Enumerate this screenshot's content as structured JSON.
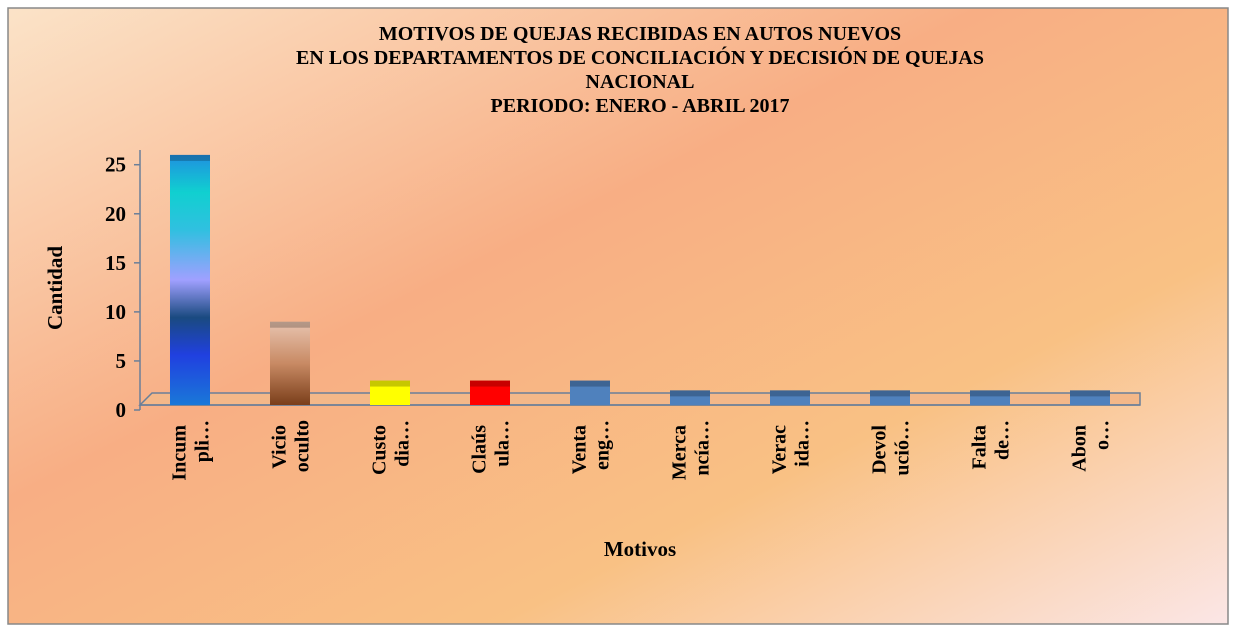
{
  "chart_data": {
    "type": "bar",
    "title": [
      "MOTIVOS DE QUEJAS RECIBIDAS EN AUTOS NUEVOS",
      "EN LOS DEPARTAMENTOS DE CONCILIACIÓN Y DECISIÓN DE QUEJAS",
      "NACIONAL",
      "PERIODO: ENERO - ABRIL 2017"
    ],
    "x_label": "Motivos",
    "y_label": "Cantidad",
    "categories": [
      "Incum pli…",
      "Vicio oculto",
      "Custo dia…",
      "Claús ula…",
      "Venta eng…",
      "Merca ncía…",
      "Verac ida…",
      "Devol ució…",
      "Falta de…",
      "Abon o…"
    ],
    "values": [
      26,
      9,
      3,
      3,
      3,
      2,
      2,
      2,
      2,
      2
    ],
    "colors": [
      "#2a8ad6",
      "#a8673f",
      "#ffff00",
      "#ff0000",
      "#4f81bd",
      "#4f81bd",
      "#4f81bd",
      "#4f81bd",
      "#4f81bd",
      "#4f81bd"
    ],
    "ylim": [
      0,
      26.5
    ],
    "yticks": [
      0,
      5,
      10,
      15,
      20,
      25
    ]
  }
}
